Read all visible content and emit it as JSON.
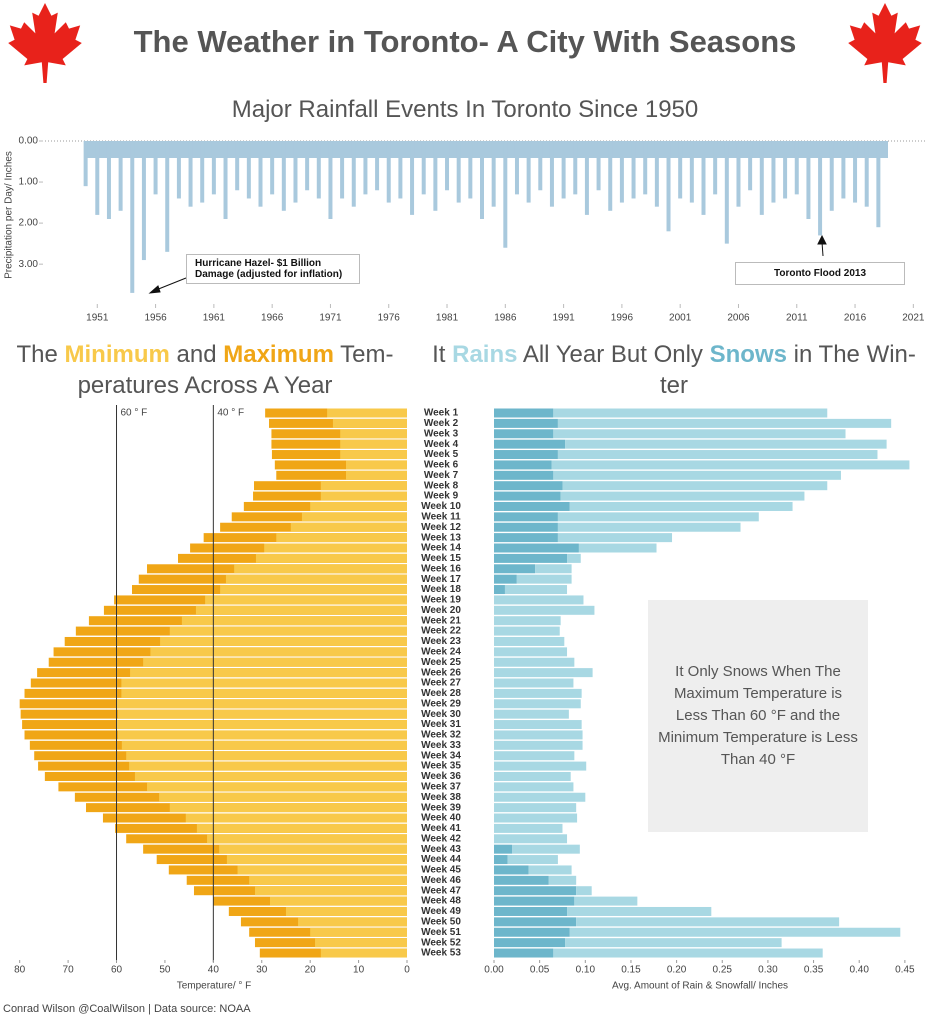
{
  "header": {
    "title": "The Weather in Toronto- A City With Seasons"
  },
  "footer": "Conrad Wilson @CoalWilson | Data source: NOAA",
  "chart_data": [
    {
      "type": "spike",
      "title": "Major Rainfall Events In Toronto Since 1950",
      "y_label": "Precipitation per Day/ Inches",
      "color": "#a9c9dd",
      "x": [
        1950,
        1951,
        1952,
        1953,
        1954,
        1955,
        1956,
        1957,
        1958,
        1959,
        1960,
        1961,
        1962,
        1963,
        1964,
        1965,
        1966,
        1967,
        1968,
        1969,
        1970,
        1971,
        1972,
        1973,
        1974,
        1975,
        1976,
        1977,
        1978,
        1979,
        1980,
        1981,
        1982,
        1983,
        1984,
        1985,
        1986,
        1987,
        1988,
        1989,
        1990,
        1991,
        1992,
        1993,
        1994,
        1995,
        1996,
        1997,
        1998,
        1999,
        2000,
        2001,
        2002,
        2003,
        2004,
        2005,
        2006,
        2007,
        2008,
        2009,
        2010,
        2011,
        2012,
        2013,
        2014,
        2015,
        2016,
        2017,
        2018
      ],
      "values": [
        1.1,
        1.8,
        1.9,
        1.7,
        3.7,
        2.9,
        1.3,
        2.7,
        1.4,
        1.6,
        1.5,
        1.3,
        1.9,
        1.2,
        1.4,
        1.6,
        1.3,
        1.7,
        1.5,
        1.2,
        1.4,
        1.9,
        1.4,
        1.6,
        1.3,
        1.2,
        1.5,
        1.4,
        1.8,
        1.3,
        1.7,
        1.2,
        1.5,
        1.4,
        1.9,
        1.6,
        2.6,
        1.3,
        1.5,
        1.2,
        1.6,
        1.4,
        1.3,
        1.8,
        1.2,
        1.7,
        1.5,
        1.4,
        1.3,
        1.6,
        2.2,
        1.4,
        1.5,
        1.8,
        1.3,
        2.5,
        1.6,
        1.2,
        1.8,
        1.5,
        1.4,
        1.3,
        1.9,
        2.3,
        1.7,
        1.4,
        1.5,
        1.6,
        2.1
      ],
      "xlim": [
        1946,
        2022
      ],
      "xticks": [
        1951,
        1956,
        1961,
        1966,
        1971,
        1976,
        1981,
        1986,
        1991,
        1996,
        2001,
        2006,
        2011,
        2016,
        2021
      ],
      "ylim": [
        0,
        3.8
      ],
      "y_reversed": true,
      "yticks": [
        {
          "value": 0,
          "label": "0.00"
        },
        {
          "value": 1,
          "label": "1.00"
        },
        {
          "value": 2,
          "label": "2.00"
        },
        {
          "value": 3,
          "label": "3.00"
        }
      ],
      "annotations": [
        "Hurricane Hazel- $1 Billion Damage (adjusted for inflation)",
        "Toronto Flood 2013"
      ]
    },
    {
      "type": "hbar",
      "title_parts": [
        "The",
        "and",
        "Tem-",
        "peratures Across A Year"
      ],
      "x_label": "Temperature/ ° F",
      "categories": [
        "Week 1",
        "Week 2",
        "Week 3",
        "Week 4",
        "Week 5",
        "Week 6",
        "Week 7",
        "Week 8",
        "Week 9",
        "Week 10",
        "Week 11",
        "Week 12",
        "Week 13",
        "Week 14",
        "Week 15",
        "Week 16",
        "Week 17",
        "Week 18",
        "Week 19",
        "Week 20",
        "Week 21",
        "Week 22",
        "Week 23",
        "Week 24",
        "Week 25",
        "Week 26",
        "Week 27",
        "Week 28",
        "Week 29",
        "Week 30",
        "Week 31",
        "Week 32",
        "Week 33",
        "Week 34",
        "Week 35",
        "Week 36",
        "Week 37",
        "Week 38",
        "Week 39",
        "Week 40",
        "Week 41",
        "Week 42",
        "Week 43",
        "Week 44",
        "Week 45",
        "Week 46",
        "Week 47",
        "Week 48",
        "Week 49",
        "Week 50",
        "Week 51",
        "Week 52",
        "Week 53"
      ],
      "series": [
        {
          "name": "Maximum",
          "color": "#f0a616",
          "values": [
            29.3,
            28.5,
            28,
            28,
            27.9,
            27.3,
            27,
            31.6,
            31.8,
            33.7,
            36.2,
            38.6,
            42,
            44.8,
            47.3,
            53.7,
            55.4,
            56.8,
            60.5,
            62.6,
            65.7,
            68.4,
            70.7,
            73,
            74,
            76.4,
            77.7,
            79,
            80,
            79.8,
            79.5,
            79,
            77.9,
            77,
            76.2,
            74.8,
            72,
            68.6,
            66.3,
            62.8,
            60.3,
            58,
            54.5,
            51.7,
            49.2,
            45.5,
            44,
            40,
            36.8,
            34.3,
            32.6,
            31.4,
            30.4
          ]
        },
        {
          "name": "Minimum",
          "color": "#f8c94a",
          "values": [
            16.5,
            15.3,
            13.8,
            13.8,
            13.8,
            12.6,
            12.6,
            17.8,
            17.8,
            20,
            21.7,
            24,
            27,
            29.5,
            31.2,
            35.7,
            37.4,
            38.6,
            41.7,
            43.6,
            46.5,
            49,
            51,
            53,
            54.5,
            57.2,
            59,
            59,
            60,
            59.7,
            60,
            59.7,
            58.9,
            58,
            57.4,
            56.2,
            53.7,
            51.2,
            49,
            45.7,
            43.4,
            41.3,
            38.8,
            37.2,
            35,
            32.6,
            31.4,
            28.3,
            25,
            22.5,
            20,
            19,
            17.8
          ]
        }
      ],
      "xlim": [
        0,
        82
      ],
      "x_reversed": true,
      "xticks": [
        0,
        10,
        20,
        30,
        40,
        50,
        60,
        70,
        80
      ],
      "reference_lines": [
        {
          "value": 60,
          "label": "60 ° F"
        },
        {
          "value": 40,
          "label": "40 ° F"
        }
      ]
    },
    {
      "type": "stacked-hbar",
      "title_parts": [
        "It",
        "All Year But Only",
        "in The Win-",
        "ter"
      ],
      "x_label": "Avg. Amount of Rain & Snowfall/ Inches",
      "series": [
        {
          "name": "Snows",
          "color": "#6db6cb",
          "values": [
            0.065,
            0.07,
            0.065,
            0.078,
            0.07,
            0.063,
            0.065,
            0.075,
            0.073,
            0.083,
            0.07,
            0.07,
            0.07,
            0.093,
            0.08,
            0.045,
            0.025,
            0.012,
            0,
            0,
            0,
            0,
            0,
            0,
            0,
            0,
            0,
            0,
            0,
            0,
            0,
            0,
            0,
            0,
            0,
            0,
            0,
            0,
            0,
            0,
            0,
            0,
            0.02,
            0.015,
            0.038,
            0.06,
            0.09,
            0.088,
            0.08,
            0.09,
            0.083,
            0.078,
            0.065
          ]
        },
        {
          "name": "Rains",
          "color": "#a8d8e3",
          "values": [
            0.3,
            0.365,
            0.32,
            0.352,
            0.35,
            0.392,
            0.315,
            0.29,
            0.267,
            0.244,
            0.22,
            0.2,
            0.125,
            0.085,
            0.015,
            0.04,
            0.06,
            0.068,
            0.098,
            0.11,
            0.073,
            0.072,
            0.077,
            0.08,
            0.088,
            0.108,
            0.087,
            0.096,
            0.095,
            0.082,
            0.096,
            0.097,
            0.097,
            0.088,
            0.101,
            0.084,
            0.087,
            0.1,
            0.09,
            0.091,
            0.075,
            0.08,
            0.074,
            0.055,
            0.047,
            0.03,
            0.017,
            0.069,
            0.158,
            0.288,
            0.362,
            0.237,
            0.295
          ]
        }
      ],
      "xlim": [
        0,
        0.46
      ],
      "xticks": [
        {
          "value": 0,
          "label": "0.00"
        },
        {
          "value": 0.05,
          "label": "0.05"
        },
        {
          "value": 0.1,
          "label": "0.10"
        },
        {
          "value": 0.15,
          "label": "0.15"
        },
        {
          "value": 0.2,
          "label": "0.20"
        },
        {
          "value": 0.25,
          "label": "0.25"
        },
        {
          "value": 0.3,
          "label": "0.30"
        },
        {
          "value": 0.35,
          "label": "0.35"
        },
        {
          "value": 0.4,
          "label": "0.40"
        },
        {
          "value": 0.45,
          "label": "0.45"
        }
      ],
      "annotation": "It Only Snows When The Maximum Temperature is Less Than 60 °F and the Minimum Temperature is Less Than 40 °F"
    }
  ]
}
